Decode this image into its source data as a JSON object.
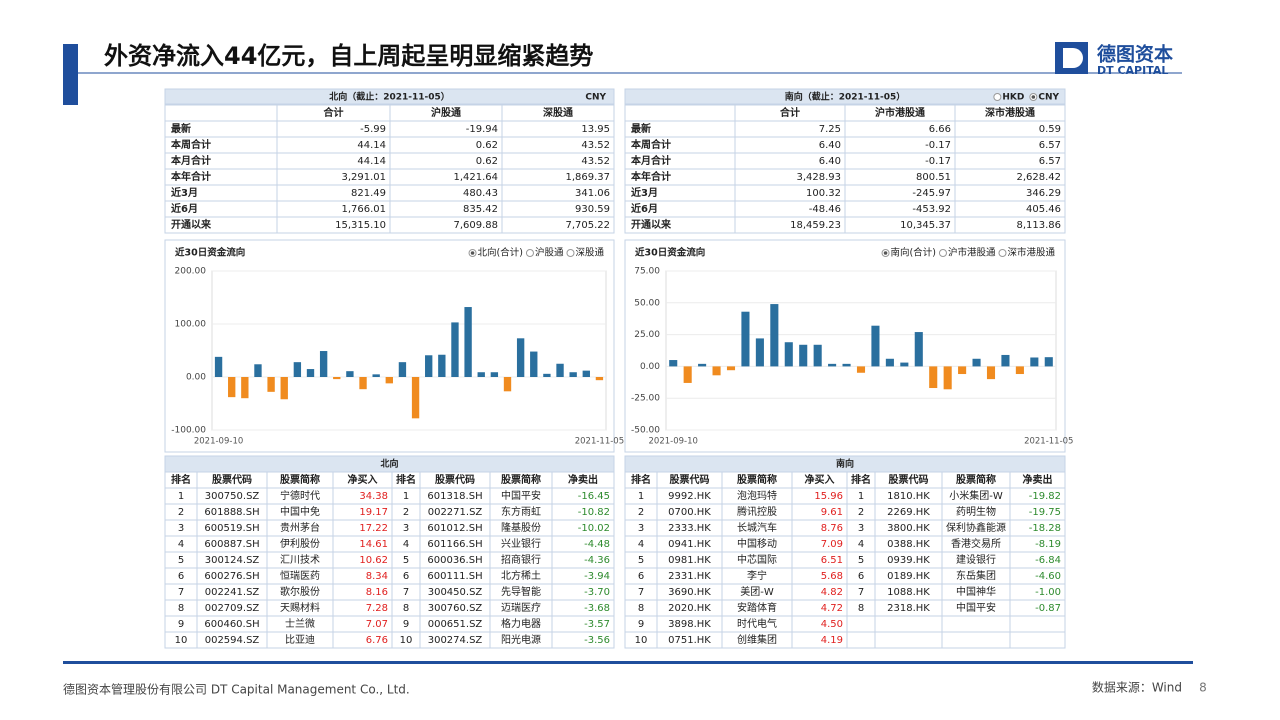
{
  "header": {
    "title": "外资净流入44亿元，自上周起呈明显缩紧趋势",
    "logo_cn": "德图资本",
    "logo_en": "DT CAPITAL"
  },
  "north_summary": {
    "title": "北向（截止：2021-11-05）",
    "currency": "CNY",
    "columns": [
      "合计",
      "沪股通",
      "深股通"
    ],
    "rows": [
      [
        "最新",
        "-5.99",
        "-19.94",
        "13.95"
      ],
      [
        "本周合计",
        "44.14",
        "0.62",
        "43.52"
      ],
      [
        "本月合计",
        "44.14",
        "0.62",
        "43.52"
      ],
      [
        "本年合计",
        "3,291.01",
        "1,421.64",
        "1,869.37"
      ],
      [
        "近3月",
        "821.49",
        "480.43",
        "341.06"
      ],
      [
        "近6月",
        "1,766.01",
        "835.42",
        "930.59"
      ],
      [
        "开通以来",
        "15,315.10",
        "7,609.88",
        "7,705.22"
      ]
    ]
  },
  "south_summary": {
    "title": "南向（截止：2021-11-05）",
    "currency_options": [
      "HKD",
      "CNY"
    ],
    "selected_currency": 1,
    "columns": [
      "合计",
      "沪市港股通",
      "深市港股通"
    ],
    "rows": [
      [
        "最新",
        "7.25",
        "6.66",
        "0.59"
      ],
      [
        "本周合计",
        "6.40",
        "-0.17",
        "6.57"
      ],
      [
        "本月合计",
        "6.40",
        "-0.17",
        "6.57"
      ],
      [
        "本年合计",
        "3,428.93",
        "800.51",
        "2,628.42"
      ],
      [
        "近3月",
        "100.32",
        "-245.97",
        "346.29"
      ],
      [
        "近6月",
        "-48.46",
        "-453.92",
        "405.46"
      ],
      [
        "开通以来",
        "18,459.23",
        "10,345.37",
        "8,113.86"
      ]
    ]
  },
  "chart_data": [
    {
      "type": "bar",
      "title": "近30日资金流向",
      "options": [
        "北向(合计)",
        "沪股通",
        "深股通"
      ],
      "selected": 0,
      "categories": [
        "2021-09-10",
        null,
        null,
        null,
        null,
        null,
        null,
        null,
        null,
        null,
        null,
        null,
        null,
        null,
        null,
        null,
        null,
        null,
        null,
        null,
        null,
        null,
        null,
        null,
        null,
        null,
        null,
        null,
        null,
        "2021-11-05"
      ],
      "values": [
        38,
        -38,
        -40,
        24,
        -28,
        -42,
        28,
        15,
        49,
        -4,
        11,
        -23,
        5,
        -12,
        28,
        -78,
        41,
        42,
        103,
        132,
        9,
        9,
        -27,
        73,
        48,
        6,
        25,
        9,
        12,
        -5.99
      ],
      "positive_color": "#2a6f9e",
      "negative_color": "#f08b1f",
      "ylim": [
        -100,
        200
      ],
      "yticks": [
        {
          "value": -100,
          "label": "-100.00"
        },
        {
          "value": 0,
          "label": "0.00"
        },
        {
          "value": 100,
          "label": "100.00"
        },
        {
          "value": 200,
          "label": "200.00"
        }
      ],
      "grid": true
    },
    {
      "type": "bar",
      "title": "近30日资金流向",
      "options": [
        "南向(合计)",
        "沪市港股通",
        "深市港股通"
      ],
      "selected": 0,
      "categories": [
        "2021-09-10",
        null,
        null,
        null,
        null,
        null,
        null,
        null,
        null,
        null,
        null,
        null,
        null,
        null,
        null,
        null,
        null,
        null,
        null,
        null,
        null,
        null,
        null,
        null,
        null,
        null,
        "2021-11-05"
      ],
      "values": [
        5,
        -13,
        2,
        -7,
        -3,
        43,
        22,
        49,
        19,
        17,
        17,
        2,
        2,
        -5,
        32,
        6,
        3,
        27,
        -17,
        -18,
        -6,
        6,
        -10,
        9,
        -6,
        7,
        7.25
      ],
      "positive_color": "#2a6f9e",
      "negative_color": "#f08b1f",
      "ylim": [
        -50,
        75
      ],
      "yticks": [
        {
          "value": -50,
          "label": "-50.00"
        },
        {
          "value": -25,
          "label": "-25.00"
        },
        {
          "value": 0,
          "label": "0.00"
        },
        {
          "value": 25,
          "label": "25.00"
        },
        {
          "value": 50,
          "label": "50.00"
        },
        {
          "value": 75,
          "label": "75.00"
        }
      ],
      "grid": true
    }
  ],
  "north_top": {
    "title": "北向",
    "columns": [
      "排名",
      "股票代码",
      "股票简称",
      "净买入",
      "排名",
      "股票代码",
      "股票简称",
      "净卖出"
    ],
    "buy": [
      [
        "1",
        "300750.SZ",
        "宁德时代",
        "34.38"
      ],
      [
        "2",
        "601888.SH",
        "中国中免",
        "19.17"
      ],
      [
        "3",
        "600519.SH",
        "贵州茅台",
        "17.22"
      ],
      [
        "4",
        "600887.SH",
        "伊利股份",
        "14.61"
      ],
      [
        "5",
        "300124.SZ",
        "汇川技术",
        "10.62"
      ],
      [
        "6",
        "600276.SH",
        "恒瑞医药",
        "8.34"
      ],
      [
        "7",
        "002241.SZ",
        "歌尔股份",
        "8.16"
      ],
      [
        "8",
        "002709.SZ",
        "天赐材料",
        "7.28"
      ],
      [
        "9",
        "600460.SH",
        "士兰微",
        "7.07"
      ],
      [
        "10",
        "002594.SZ",
        "比亚迪",
        "6.76"
      ]
    ],
    "sell": [
      [
        "1",
        "601318.SH",
        "中国平安",
        "-16.45"
      ],
      [
        "2",
        "002271.SZ",
        "东方雨虹",
        "-10.82"
      ],
      [
        "3",
        "601012.SH",
        "隆基股份",
        "-10.02"
      ],
      [
        "4",
        "601166.SH",
        "兴业银行",
        "-4.48"
      ],
      [
        "5",
        "600036.SH",
        "招商银行",
        "-4.36"
      ],
      [
        "6",
        "600111.SH",
        "北方稀土",
        "-3.94"
      ],
      [
        "7",
        "300450.SZ",
        "先导智能",
        "-3.70"
      ],
      [
        "8",
        "300760.SZ",
        "迈瑞医疗",
        "-3.68"
      ],
      [
        "9",
        "000651.SZ",
        "格力电器",
        "-3.57"
      ],
      [
        "10",
        "300274.SZ",
        "阳光电源",
        "-3.56"
      ]
    ]
  },
  "south_top": {
    "title": "南向",
    "columns": [
      "排名",
      "股票代码",
      "股票简称",
      "净买入",
      "排名",
      "股票代码",
      "股票简称",
      "净卖出"
    ],
    "buy": [
      [
        "1",
        "9992.HK",
        "泡泡玛特",
        "15.96"
      ],
      [
        "2",
        "0700.HK",
        "腾讯控股",
        "9.61"
      ],
      [
        "3",
        "2333.HK",
        "长城汽车",
        "8.76"
      ],
      [
        "4",
        "0941.HK",
        "中国移动",
        "7.09"
      ],
      [
        "5",
        "0981.HK",
        "中芯国际",
        "6.51"
      ],
      [
        "6",
        "2331.HK",
        "李宁",
        "5.68"
      ],
      [
        "7",
        "3690.HK",
        "美团-W",
        "4.82"
      ],
      [
        "8",
        "2020.HK",
        "安踏体育",
        "4.72"
      ],
      [
        "9",
        "3898.HK",
        "时代电气",
        "4.50"
      ],
      [
        "10",
        "0751.HK",
        "创维集团",
        "4.19"
      ]
    ],
    "sell": [
      [
        "1",
        "1810.HK",
        "小米集团-W",
        "-19.82"
      ],
      [
        "2",
        "2269.HK",
        "药明生物",
        "-19.75"
      ],
      [
        "3",
        "3800.HK",
        "保利协鑫能源",
        "-18.28"
      ],
      [
        "4",
        "0388.HK",
        "香港交易所",
        "-8.19"
      ],
      [
        "5",
        "0939.HK",
        "建设银行",
        "-6.84"
      ],
      [
        "6",
        "0189.HK",
        "东岳集团",
        "-4.60"
      ],
      [
        "7",
        "1088.HK",
        "中国神华",
        "-1.00"
      ],
      [
        "8",
        "2318.HK",
        "中国平安",
        "-0.87"
      ]
    ]
  },
  "footer": {
    "company": "德图资本管理股份有限公司  DT Capital Management Co., Ltd.",
    "source": "数据来源：Wind",
    "page": "8"
  }
}
